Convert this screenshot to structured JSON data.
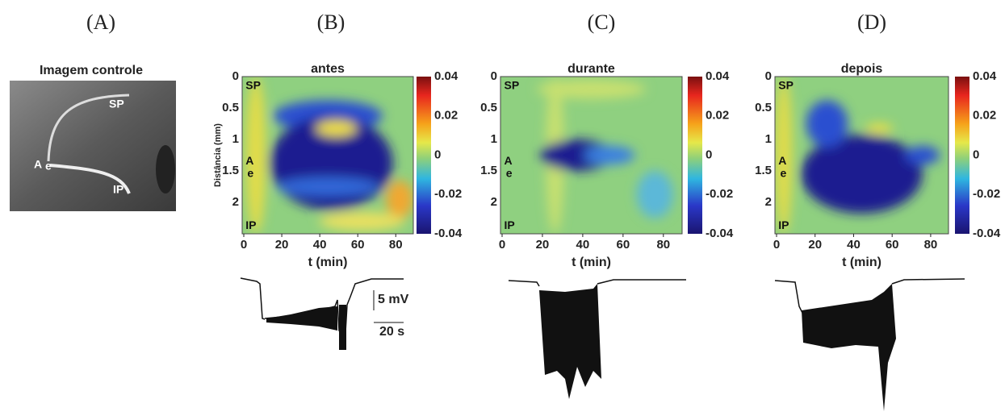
{
  "panels": {
    "a": {
      "label": "(A)",
      "title": "Imagem controle",
      "regions": [
        "SP",
        "A",
        "e",
        "IP"
      ]
    },
    "b": {
      "label": "(B)",
      "title": "antes",
      "y_axis_label": "Distância (mm)",
      "x_axis_label": "t (min)",
      "x_ticks": [
        0,
        20,
        40,
        60,
        80
      ],
      "y_ticks": [
        0,
        0.5,
        1,
        1.5,
        2
      ],
      "colorbar_ticks": [
        0.04,
        0.02,
        0,
        -0.02,
        -0.04
      ],
      "regions": [
        "SP",
        "A",
        "e",
        "IP"
      ],
      "scale_bar": [
        "5 mV",
        "20 s"
      ]
    },
    "c": {
      "label": "(C)",
      "title": "durante",
      "x_axis_label": "t (min)",
      "x_ticks": [
        0,
        20,
        40,
        60,
        80
      ],
      "y_ticks": [
        0,
        0.5,
        1,
        1.5,
        2
      ],
      "colorbar_ticks": [
        0.04,
        0.02,
        0,
        -0.02,
        -0.04
      ],
      "regions": [
        "SP",
        "A",
        "e",
        "IP"
      ]
    },
    "d": {
      "label": "(D)",
      "title": "depois",
      "x_axis_label": "t (min)",
      "x_ticks": [
        0,
        20,
        40,
        60,
        80
      ],
      "y_ticks": [
        0,
        0.5,
        1,
        1.5,
        2
      ],
      "colorbar_ticks": [
        0.04,
        0.02,
        0,
        -0.02,
        -0.04
      ],
      "regions": [
        "SP",
        "A",
        "e",
        "IP"
      ]
    }
  }
}
